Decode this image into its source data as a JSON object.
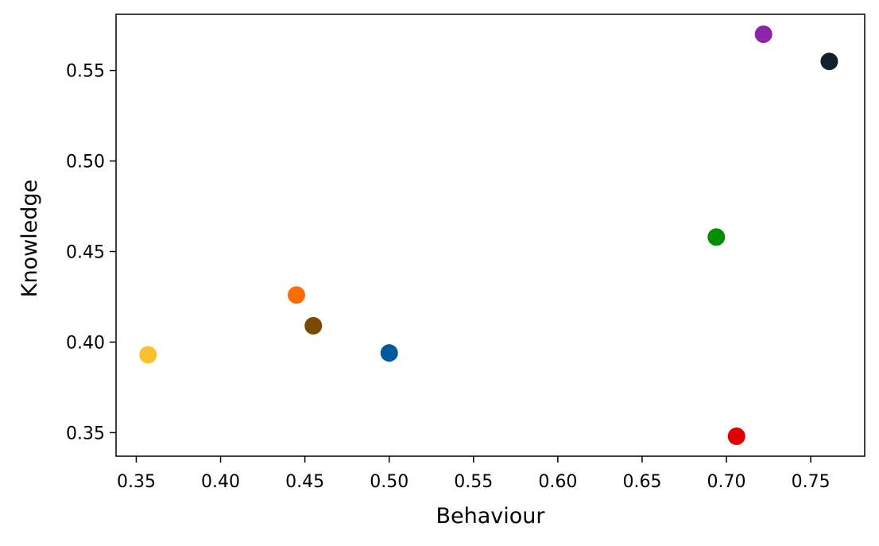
{
  "chart_data": {
    "type": "scatter",
    "title": "",
    "xlabel": "Behaviour",
    "ylabel": "Knowledge",
    "xlim": [
      0.338,
      0.782
    ],
    "ylim": [
      0.337,
      0.581
    ],
    "xticks": [
      0.35,
      0.4,
      0.45,
      0.5,
      0.55,
      0.6,
      0.65,
      0.7,
      0.75
    ],
    "xtick_labels": [
      "0.35",
      "0.40",
      "0.45",
      "0.50",
      "0.55",
      "0.60",
      "0.65",
      "0.70",
      "0.75"
    ],
    "yticks": [
      0.35,
      0.4,
      0.45,
      0.5,
      0.55
    ],
    "ytick_labels": [
      "0.35",
      "0.40",
      "0.45",
      "0.50",
      "0.55"
    ],
    "grid": false,
    "legend": false,
    "points": [
      {
        "x": 0.357,
        "y": 0.393,
        "color": "#FBC02D"
      },
      {
        "x": 0.445,
        "y": 0.426,
        "color": "#FF6D00"
      },
      {
        "x": 0.455,
        "y": 0.409,
        "color": "#7B4A00"
      },
      {
        "x": 0.5,
        "y": 0.394,
        "color": "#005A9C"
      },
      {
        "x": 0.694,
        "y": 0.458,
        "color": "#008F00"
      },
      {
        "x": 0.706,
        "y": 0.348,
        "color": "#E00000"
      },
      {
        "x": 0.722,
        "y": 0.57,
        "color": "#8E24AA"
      },
      {
        "x": 0.761,
        "y": 0.555,
        "color": "#10202C"
      }
    ]
  }
}
